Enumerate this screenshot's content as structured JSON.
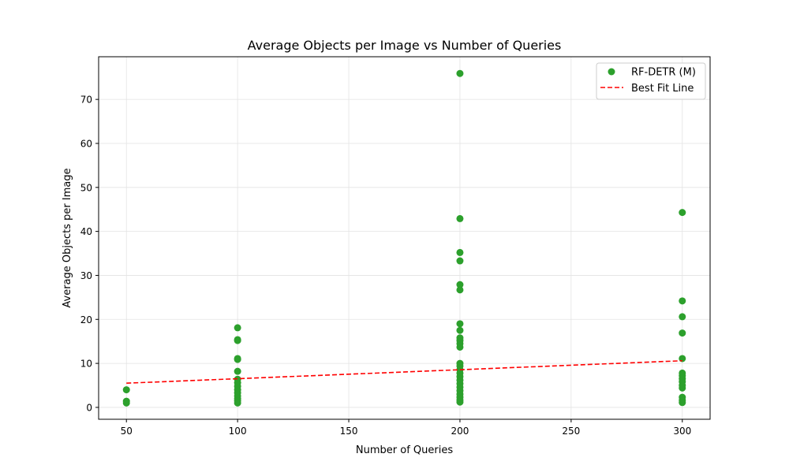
{
  "chart_data": {
    "type": "scatter",
    "title": "Average Objects per Image vs Number of Queries",
    "xlabel": "Number of Queries",
    "ylabel": "Average Objects per Image",
    "xlim": [
      37.5,
      312.5
    ],
    "ylim": [
      -2.7,
      79.7
    ],
    "xticks": [
      50,
      100,
      150,
      200,
      250,
      300
    ],
    "yticks": [
      0,
      10,
      20,
      30,
      40,
      50,
      60,
      70
    ],
    "grid": true,
    "legend_position": "top-right",
    "series": [
      {
        "name": "RF-DETR (M)",
        "color": "#2ca02c",
        "points": [
          [
            50,
            4.0
          ],
          [
            50,
            1.4
          ],
          [
            50,
            1.0
          ],
          [
            100,
            18.1
          ],
          [
            100,
            15.4
          ],
          [
            100,
            15.2
          ],
          [
            100,
            11.1
          ],
          [
            100,
            10.9
          ],
          [
            100,
            8.2
          ],
          [
            100,
            6.4
          ],
          [
            100,
            5.6
          ],
          [
            100,
            4.8
          ],
          [
            100,
            4.0
          ],
          [
            100,
            3.3
          ],
          [
            100,
            2.6
          ],
          [
            100,
            2.0
          ],
          [
            100,
            1.5
          ],
          [
            100,
            1.0
          ],
          [
            200,
            75.9
          ],
          [
            200,
            42.9
          ],
          [
            200,
            35.2
          ],
          [
            200,
            33.3
          ],
          [
            200,
            27.9
          ],
          [
            200,
            26.7
          ],
          [
            200,
            19.0
          ],
          [
            200,
            17.5
          ],
          [
            200,
            15.8
          ],
          [
            200,
            15.2
          ],
          [
            200,
            14.5
          ],
          [
            200,
            13.7
          ],
          [
            200,
            10.0
          ],
          [
            200,
            9.4
          ],
          [
            200,
            8.6
          ],
          [
            200,
            7.8
          ],
          [
            200,
            7.0
          ],
          [
            200,
            6.2
          ],
          [
            200,
            5.4
          ],
          [
            200,
            4.6
          ],
          [
            200,
            3.8
          ],
          [
            200,
            3.0
          ],
          [
            200,
            2.3
          ],
          [
            200,
            1.7
          ],
          [
            200,
            1.2
          ],
          [
            300,
            44.3
          ],
          [
            300,
            24.2
          ],
          [
            300,
            20.6
          ],
          [
            300,
            16.9
          ],
          [
            300,
            11.1
          ],
          [
            300,
            7.8
          ],
          [
            300,
            7.2
          ],
          [
            300,
            6.5
          ],
          [
            300,
            5.8
          ],
          [
            300,
            5.0
          ],
          [
            300,
            4.4
          ],
          [
            300,
            2.3
          ],
          [
            300,
            1.6
          ],
          [
            300,
            1.1
          ]
        ]
      },
      {
        "name": "Best Fit Line",
        "color": "#ff0000",
        "style": "dashed",
        "points": [
          [
            50,
            5.5
          ],
          [
            300,
            10.6
          ]
        ]
      }
    ]
  }
}
